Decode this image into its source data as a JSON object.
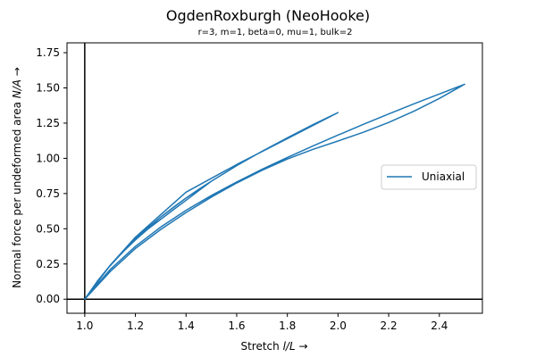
{
  "chart_data": {
    "type": "line",
    "title": "OgdenRoxburgh (NeoHooke)",
    "subtitle": "r=3, m=1, beta=0, mu=1, bulk=2",
    "xlabel": "Stretch $l/L$  →",
    "ylabel": "Normal force per undeformed area $N/A$  →",
    "xlabel_parts": {
      "prefix": "Stretch ",
      "var": "l/L",
      "suffix": "  →"
    },
    "ylabel_parts": {
      "prefix": "Normal force per undeformed area ",
      "var": "N/A",
      "suffix": "  →"
    },
    "xlim": [
      0.93,
      2.57
    ],
    "ylim": [
      -0.1,
      1.82
    ],
    "xticks": [
      1.0,
      1.2,
      1.4,
      1.6,
      1.8,
      2.0,
      2.2,
      2.4
    ],
    "xtick_labels": [
      "1.0",
      "1.2",
      "1.4",
      "1.6",
      "1.8",
      "2.0",
      "2.2",
      "2.4"
    ],
    "yticks": [
      0.0,
      0.25,
      0.5,
      0.75,
      1.0,
      1.25,
      1.5,
      1.75
    ],
    "ytick_labels": [
      "0.00",
      "0.25",
      "0.50",
      "0.75",
      "1.00",
      "1.25",
      "1.50",
      "1.75"
    ],
    "reference_lines": {
      "x": 1.0,
      "y": 0.0,
      "color": "#000000"
    },
    "grid": false,
    "legend_position": "center-right",
    "series": [
      {
        "name": "Uniaxial",
        "color": "#1f77b4",
        "x": [
          1.0,
          1.05,
          1.1,
          1.15,
          1.2,
          1.25,
          1.3,
          1.35,
          1.4,
          1.45,
          1.5,
          1.45,
          1.4,
          1.35,
          1.3,
          1.25,
          1.2,
          1.15,
          1.1,
          1.05,
          1.0,
          1.1,
          1.2,
          1.3,
          1.4,
          1.5,
          1.6,
          1.7,
          1.8,
          1.9,
          2.0,
          1.8,
          1.6,
          1.4,
          1.2,
          1.1,
          1.0,
          1.1,
          1.2,
          1.3,
          1.4,
          1.5,
          1.6,
          1.7,
          1.8,
          1.9,
          2.0,
          2.1,
          2.2,
          2.3,
          2.4,
          2.5,
          2.4,
          2.3,
          2.2,
          2.1,
          2.0,
          1.9,
          1.8,
          1.7,
          1.6,
          1.5,
          1.4,
          1.3,
          1.2,
          1.1,
          1.0
        ],
        "y": [
          0.0,
          0.128,
          0.239,
          0.338,
          0.427,
          0.508,
          0.583,
          0.653,
          0.718,
          0.78,
          0.838,
          0.77,
          0.702,
          0.635,
          0.567,
          0.499,
          0.421,
          0.334,
          0.237,
          0.128,
          0.0,
          0.239,
          0.427,
          0.583,
          0.718,
          0.838,
          0.948,
          1.05,
          1.146,
          1.238,
          1.325,
          1.14,
          0.956,
          0.76,
          0.44,
          0.24,
          0.0,
          0.21,
          0.375,
          0.512,
          0.631,
          0.736,
          0.832,
          0.922,
          1.006,
          1.087,
          1.165,
          1.241,
          1.315,
          1.387,
          1.457,
          1.526,
          1.425,
          1.335,
          1.255,
          1.185,
          1.123,
          1.063,
          0.995,
          0.915,
          0.825,
          0.725,
          0.615,
          0.495,
          0.36,
          0.195,
          0.0
        ]
      }
    ]
  }
}
